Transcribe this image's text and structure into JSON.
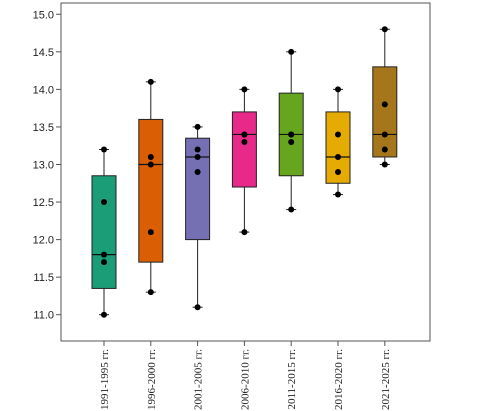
{
  "chart_data": {
    "type": "boxplot",
    "title": "",
    "xlabel": "",
    "ylabel": "",
    "ylim": [
      10.65,
      15.15
    ],
    "yticks": [
      11.0,
      11.5,
      12.0,
      12.5,
      13.0,
      13.5,
      14.0,
      14.5,
      15.0
    ],
    "ytick_labels": [
      "11.0",
      "11.5",
      "12.0",
      "12.5",
      "13.0",
      "13.5",
      "14.0",
      "14.5",
      "15.0"
    ],
    "grid": false,
    "legend": "none",
    "categories": [
      "1991-1995 гг.",
      "1996-2000 гг.",
      "2001-2005 гг.",
      "2006-2010 гг.",
      "2011-2015 гг.",
      "2016-2020 гг.",
      "2021-2025 гг."
    ],
    "boxes": [
      {
        "category": "1991-1995 гг.",
        "color": "#1b9e77",
        "whisker_low": 11.0,
        "q1": 11.35,
        "median": 11.8,
        "q3": 12.85,
        "whisker_high": 13.2,
        "points": [
          11.0,
          11.7,
          11.8,
          12.5,
          13.2
        ]
      },
      {
        "category": "1996-2000 гг.",
        "color": "#d95f02",
        "whisker_low": 11.3,
        "q1": 11.7,
        "median": 13.0,
        "q3": 13.6,
        "whisker_high": 14.1,
        "points": [
          11.3,
          12.1,
          13.0,
          13.1,
          14.1
        ]
      },
      {
        "category": "2001-2005 гг.",
        "color": "#7570b3",
        "whisker_low": 11.1,
        "q1": 12.0,
        "median": 13.1,
        "q3": 13.35,
        "whisker_high": 13.5,
        "points": [
          11.1,
          12.9,
          13.1,
          13.2,
          13.5
        ]
      },
      {
        "category": "2006-2010 гг.",
        "color": "#e7298a",
        "whisker_low": 12.1,
        "q1": 12.7,
        "median": 13.4,
        "q3": 13.7,
        "whisker_high": 14.0,
        "points": [
          12.1,
          13.3,
          13.4,
          13.4,
          14.0
        ]
      },
      {
        "category": "2011-2015 гг.",
        "color": "#66a61e",
        "whisker_low": 12.4,
        "q1": 12.85,
        "median": 13.4,
        "q3": 13.95,
        "whisker_high": 14.5,
        "points": [
          12.4,
          13.3,
          13.4,
          13.4,
          14.5
        ]
      },
      {
        "category": "2016-2020 гг.",
        "color": "#e6ab02",
        "whisker_low": 12.6,
        "q1": 12.75,
        "median": 13.1,
        "q3": 13.7,
        "whisker_high": 14.0,
        "points": [
          12.6,
          12.9,
          13.1,
          13.4,
          14.0
        ]
      },
      {
        "category": "2021-2025 гг.",
        "color": "#a6761d",
        "whisker_low": 13.0,
        "q1": 13.1,
        "median": 13.4,
        "q3": 14.3,
        "whisker_high": 14.8,
        "points": [
          13.0,
          13.2,
          13.4,
          13.8,
          14.8
        ]
      }
    ]
  }
}
